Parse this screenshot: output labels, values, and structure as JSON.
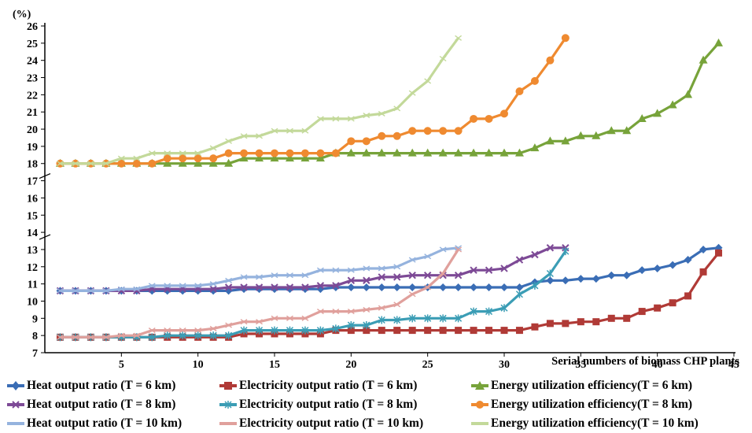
{
  "chart_data": {
    "type": "line",
    "y_unit_label": "(%)",
    "xlabel": "Serial numbers of biomass CHP plants",
    "ylabel": "",
    "xlim": [
      0,
      45
    ],
    "ylim": [
      7,
      26
    ],
    "x_ticks": [
      5,
      10,
      15,
      20,
      25,
      30,
      35,
      40,
      45
    ],
    "y_ticks": [
      7,
      8,
      9,
      10,
      11,
      12,
      13,
      14,
      15,
      16,
      17,
      18,
      19,
      20,
      21,
      22,
      23,
      24,
      25,
      26
    ],
    "y_broken_between": [
      14,
      17
    ],
    "grid": false,
    "legend_position": "bottom",
    "series": [
      {
        "name": "Heat output ratio (T = 6 km)",
        "color": "#3a6db5",
        "marker": "diamond",
        "values": [
          10.6,
          10.6,
          10.6,
          10.6,
          10.6,
          10.6,
          10.6,
          10.6,
          10.6,
          10.6,
          10.6,
          10.6,
          10.7,
          10.7,
          10.7,
          10.7,
          10.7,
          10.7,
          10.8,
          10.8,
          10.8,
          10.8,
          10.8,
          10.8,
          10.8,
          10.8,
          10.8,
          10.8,
          10.8,
          10.8,
          10.8,
          11.1,
          11.2,
          11.2,
          11.3,
          11.3,
          11.5,
          11.5,
          11.8,
          11.9,
          12.1,
          12.4,
          13.0,
          13.1
        ]
      },
      {
        "name": "Electricity output ratio (T = 6 km)",
        "color": "#b03a36",
        "marker": "square",
        "values": [
          7.9,
          7.9,
          7.9,
          7.9,
          7.9,
          7.9,
          7.9,
          7.9,
          7.9,
          7.9,
          7.9,
          7.9,
          8.1,
          8.1,
          8.1,
          8.1,
          8.1,
          8.1,
          8.3,
          8.3,
          8.3,
          8.3,
          8.3,
          8.3,
          8.3,
          8.3,
          8.3,
          8.3,
          8.3,
          8.3,
          8.3,
          8.5,
          8.7,
          8.7,
          8.8,
          8.8,
          9.0,
          9.0,
          9.4,
          9.6,
          9.9,
          10.3,
          11.7,
          12.8
        ]
      },
      {
        "name": "Energy utilization efficiency(T = 6 km)",
        "color": "#77a33a",
        "marker": "triangle",
        "values": [
          18.0,
          18.0,
          18.0,
          18.0,
          18.0,
          18.0,
          18.0,
          18.0,
          18.0,
          18.0,
          18.0,
          18.0,
          18.3,
          18.3,
          18.3,
          18.3,
          18.3,
          18.3,
          18.6,
          18.6,
          18.6,
          18.6,
          18.6,
          18.6,
          18.6,
          18.6,
          18.6,
          18.6,
          18.6,
          18.6,
          18.6,
          18.9,
          19.3,
          19.3,
          19.6,
          19.6,
          19.9,
          19.9,
          20.6,
          20.9,
          21.4,
          22.0,
          24.0,
          25.0
        ]
      },
      {
        "name": "Heat output ratio (T = 8 km)",
        "color": "#7d4a96",
        "marker": "cross",
        "values": [
          10.6,
          10.6,
          10.6,
          10.6,
          10.6,
          10.6,
          10.7,
          10.7,
          10.7,
          10.7,
          10.7,
          10.8,
          10.8,
          10.8,
          10.8,
          10.8,
          10.8,
          10.9,
          10.9,
          11.2,
          11.2,
          11.4,
          11.4,
          11.5,
          11.5,
          11.5,
          11.5,
          11.8,
          11.8,
          11.9,
          12.4,
          12.7,
          13.1,
          13.1
        ]
      },
      {
        "name": "Electricity output ratio (T = 8 km)",
        "color": "#3b9db5",
        "marker": "star",
        "values": [
          7.9,
          7.9,
          7.9,
          7.9,
          7.9,
          7.9,
          7.9,
          8.0,
          8.0,
          8.0,
          8.0,
          8.0,
          8.3,
          8.3,
          8.3,
          8.3,
          8.3,
          8.3,
          8.4,
          8.6,
          8.6,
          8.9,
          8.9,
          9.0,
          9.0,
          9.0,
          9.0,
          9.4,
          9.4,
          9.6,
          10.4,
          10.9,
          11.6,
          12.9
        ]
      },
      {
        "name": "Energy utilization efficiency(T = 8 km)",
        "color": "#ef8a30",
        "marker": "circle",
        "values": [
          18.0,
          18.0,
          18.0,
          18.0,
          18.0,
          18.0,
          18.0,
          18.3,
          18.3,
          18.3,
          18.3,
          18.6,
          18.6,
          18.6,
          18.6,
          18.6,
          18.6,
          18.6,
          18.6,
          19.3,
          19.3,
          19.6,
          19.6,
          19.9,
          19.9,
          19.9,
          19.9,
          20.6,
          20.6,
          20.9,
          22.2,
          22.8,
          24.0,
          25.3
        ]
      },
      {
        "name": "Heat output ratio (T = 10 km)",
        "color": "#95b3de",
        "marker": "dash",
        "values": [
          10.6,
          10.6,
          10.6,
          10.6,
          10.7,
          10.7,
          10.9,
          10.9,
          10.9,
          10.9,
          11.0,
          11.2,
          11.4,
          11.4,
          11.5,
          11.5,
          11.5,
          11.8,
          11.8,
          11.8,
          11.9,
          11.9,
          12.0,
          12.4,
          12.6,
          13.0,
          13.1
        ]
      },
      {
        "name": "Electricity output ratio (T = 10 km)",
        "color": "#e0a09c",
        "marker": "dash",
        "values": [
          7.9,
          7.9,
          7.9,
          7.9,
          8.0,
          8.0,
          8.3,
          8.3,
          8.3,
          8.3,
          8.4,
          8.6,
          8.8,
          8.8,
          9.0,
          9.0,
          9.0,
          9.4,
          9.4,
          9.4,
          9.5,
          9.6,
          9.8,
          10.4,
          10.8,
          11.6,
          13.0
        ]
      },
      {
        "name": "Energy utilization efficiency(T = 10 km)",
        "color": "#c3d99a",
        "marker": "dash",
        "values": [
          18.0,
          18.0,
          18.0,
          18.0,
          18.3,
          18.3,
          18.6,
          18.6,
          18.6,
          18.6,
          18.9,
          19.3,
          19.6,
          19.6,
          19.9,
          19.9,
          19.9,
          20.6,
          20.6,
          20.6,
          20.8,
          20.9,
          21.2,
          22.1,
          22.8,
          24.1,
          25.3
        ]
      }
    ]
  }
}
